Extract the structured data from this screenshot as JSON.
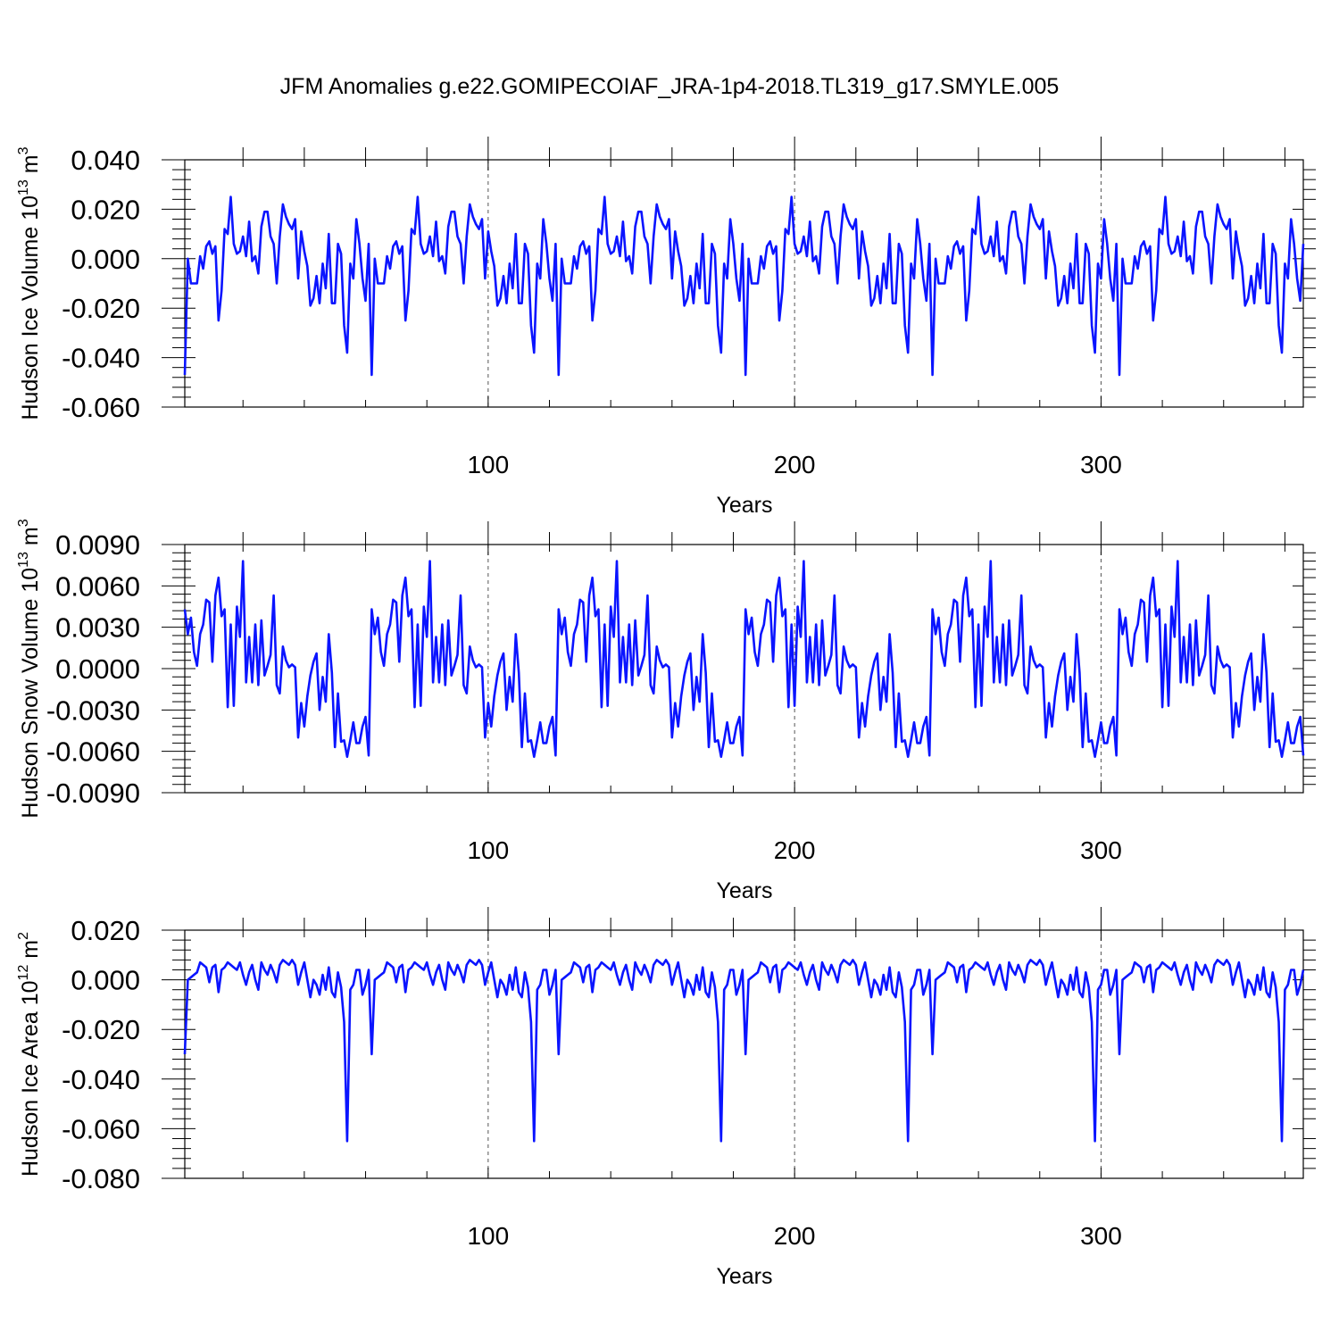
{
  "title": "JFM Anomalies g.e22.GOMIPECOIAF_JRA-1p4-2018.TL319_g17.SMYLE.005",
  "line_color": "#0a14ff",
  "chart_data": [
    {
      "type": "line",
      "ylabel_main": "Hudson Ice Volume 10",
      "ylabel_exp": "13",
      "ylabel_unit": " m",
      "ylabel_unit_exp": "3",
      "xlabel": "Years",
      "xlim": [
        1,
        366
      ],
      "ylim": [
        -0.06,
        0.04
      ],
      "yticks": [
        -0.06,
        -0.04,
        -0.02,
        0.0,
        0.02,
        0.04
      ],
      "ytick_labels": [
        "-0.060",
        "-0.040",
        "-0.020",
        "0.000",
        "0.020",
        "0.040"
      ],
      "xticks": [
        100,
        200,
        300
      ],
      "xtick_labels": [
        "100",
        "200",
        "300"
      ],
      "series": [
        {
          "name": "ice volume",
          "period": 61,
          "values": [
            -0.047,
            0.0,
            -0.01,
            -0.01,
            -0.01,
            0.001,
            -0.004,
            0.005,
            0.007,
            0.002,
            0.005,
            -0.025,
            -0.013,
            0.012,
            0.01,
            0.025,
            0.006,
            0.002,
            0.003,
            0.009,
            0.001,
            0.015,
            -0.001,
            0.001,
            -0.006,
            0.013,
            0.019,
            0.019,
            0.009,
            0.006,
            -0.01,
            0.009,
            0.022,
            0.017,
            0.014,
            0.012,
            0.016,
            -0.008,
            0.011,
            0.003,
            -0.003,
            -0.019,
            -0.016,
            -0.007,
            -0.018,
            -0.002,
            -0.012,
            0.01,
            -0.018,
            -0.018,
            0.006,
            0.002,
            -0.027,
            -0.038,
            -0.002,
            -0.008,
            0.016,
            0.006,
            -0.008,
            -0.017,
            0.006
          ]
        }
      ]
    },
    {
      "type": "line",
      "ylabel_main": "Hudson Snow Volume 10",
      "ylabel_exp": "13",
      "ylabel_unit": " m",
      "ylabel_unit_exp": "3",
      "xlabel": "Years",
      "xlim": [
        1,
        366
      ],
      "ylim": [
        -0.009,
        0.009
      ],
      "yticks": [
        -0.009,
        -0.006,
        -0.003,
        0.0,
        0.003,
        0.006,
        0.009
      ],
      "ytick_labels": [
        "-0.0090",
        "-0.0060",
        "-0.0030",
        "0.0000",
        "0.0030",
        "0.0060",
        "0.0090"
      ],
      "xticks": [
        100,
        200,
        300
      ],
      "xtick_labels": [
        "100",
        "200",
        "300"
      ],
      "series": [
        {
          "name": "snow volume",
          "period": 61,
          "values": [
            0.0043,
            0.0025,
            0.0037,
            0.0012,
            0.0002,
            0.0025,
            0.0032,
            0.005,
            0.0048,
            0.0005,
            0.0053,
            0.0066,
            0.0038,
            0.0043,
            -0.0028,
            0.0032,
            -0.0027,
            0.0045,
            0.0023,
            0.0078,
            -0.001,
            0.0023,
            -0.001,
            0.0032,
            -0.0012,
            0.0035,
            -0.0005,
            0.0002,
            0.001,
            0.0053,
            -0.0012,
            -0.0018,
            0.0016,
            0.0006,
            0.0001,
            0.0003,
            0.0001,
            -0.005,
            -0.0025,
            -0.0042,
            -0.002,
            -0.0005,
            0.0005,
            0.0011,
            -0.003,
            -0.0006,
            -0.0024,
            0.0025,
            -0.0003,
            -0.0057,
            -0.0018,
            -0.0053,
            -0.0052,
            -0.0064,
            -0.0052,
            -0.0039,
            -0.0054,
            -0.0054,
            -0.0042,
            -0.0035,
            -0.0063
          ]
        }
      ]
    },
    {
      "type": "line",
      "ylabel_main": "Hudson Ice Area 10",
      "ylabel_exp": "12",
      "ylabel_unit": " m",
      "ylabel_unit_exp": "2",
      "xlabel": "Years",
      "xlim": [
        1,
        366
      ],
      "ylim": [
        -0.08,
        0.02
      ],
      "yticks": [
        -0.08,
        -0.06,
        -0.04,
        -0.02,
        0.0,
        0.02
      ],
      "ytick_labels": [
        "-0.080",
        "-0.060",
        "-0.040",
        "-0.020",
        "0.000",
        "0.020"
      ],
      "xticks": [
        100,
        200,
        300
      ],
      "xtick_labels": [
        "100",
        "200",
        "300"
      ],
      "series": [
        {
          "name": "ice area",
          "period": 61,
          "values": [
            -0.03,
            0.0,
            0.001,
            0.002,
            0.003,
            0.007,
            0.006,
            0.005,
            -0.001,
            0.005,
            0.006,
            -0.005,
            0.004,
            0.005,
            0.007,
            0.006,
            0.005,
            0.004,
            0.007,
            0.002,
            -0.002,
            0.003,
            0.006,
            0.0,
            -0.004,
            0.007,
            0.004,
            0.002,
            0.006,
            0.003,
            -0.001,
            0.006,
            0.008,
            0.007,
            0.006,
            0.008,
            0.006,
            -0.002,
            0.003,
            0.007,
            0.0,
            -0.007,
            0.0,
            -0.002,
            -0.006,
            0.002,
            -0.004,
            0.005,
            -0.005,
            -0.007,
            0.003,
            -0.003,
            -0.017,
            -0.065,
            -0.004,
            -0.002,
            0.004,
            0.004,
            -0.006,
            -0.002,
            0.004
          ]
        }
      ]
    }
  ]
}
